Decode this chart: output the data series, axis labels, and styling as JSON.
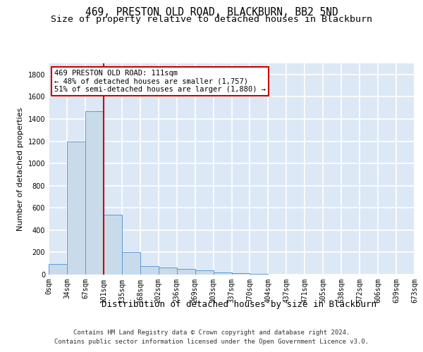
{
  "title": "469, PRESTON OLD ROAD, BLACKBURN, BB2 5ND",
  "subtitle": "Size of property relative to detached houses in Blackburn",
  "xlabel": "Distribution of detached houses by size in Blackburn",
  "ylabel": "Number of detached properties",
  "bin_edges": [
    "0sqm",
    "34sqm",
    "67sqm",
    "101sqm",
    "135sqm",
    "168sqm",
    "202sqm",
    "236sqm",
    "269sqm",
    "303sqm",
    "337sqm",
    "370sqm",
    "404sqm",
    "437sqm",
    "471sqm",
    "505sqm",
    "538sqm",
    "572sqm",
    "606sqm",
    "639sqm",
    "673sqm"
  ],
  "bar_values": [
    95,
    1200,
    1470,
    540,
    205,
    75,
    65,
    48,
    35,
    20,
    10,
    5,
    0,
    0,
    0,
    0,
    0,
    0,
    0,
    0
  ],
  "bar_color": "#c9daea",
  "bar_edge_color": "#5b9bd5",
  "red_line_x": 3,
  "red_line_color": "#cc0000",
  "annotation_text": "469 PRESTON OLD ROAD: 111sqm\n← 48% of detached houses are smaller (1,757)\n51% of semi-detached houses are larger (1,880) →",
  "annotation_box_color": "#ffffff",
  "annotation_box_edge": "#cc0000",
  "footer_line1": "Contains HM Land Registry data © Crown copyright and database right 2024.",
  "footer_line2": "Contains public sector information licensed under the Open Government Licence v3.0.",
  "ylim": [
    0,
    1900
  ],
  "yticks": [
    0,
    200,
    400,
    600,
    800,
    1000,
    1200,
    1400,
    1600,
    1800
  ],
  "background_color": "#dce8f5",
  "grid_color": "#ffffff",
  "title_fontsize": 10.5,
  "subtitle_fontsize": 9.5,
  "xlabel_fontsize": 9,
  "ylabel_fontsize": 8,
  "tick_fontsize": 7,
  "annotation_fontsize": 7.5,
  "footer_fontsize": 6.5
}
